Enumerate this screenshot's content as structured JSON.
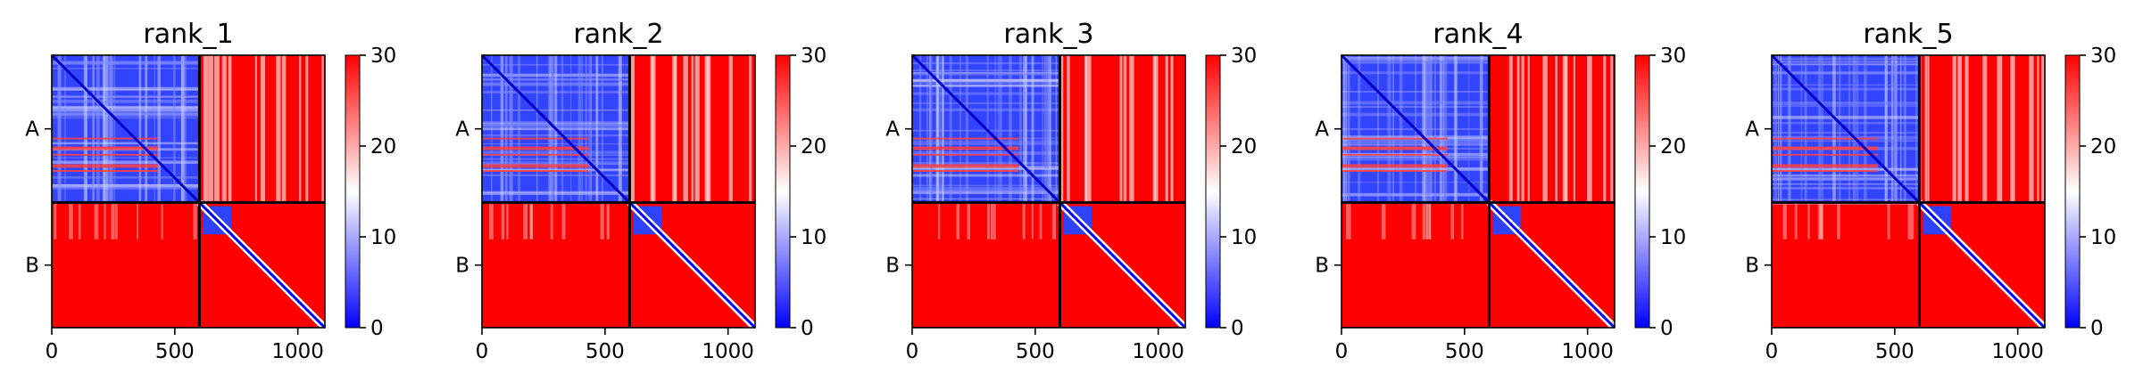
{
  "chart_data": [
    {
      "type": "heatmap",
      "title": "rank_1",
      "chains": [
        "A",
        "B"
      ],
      "chain_boundary": 600,
      "xticks": [
        "0",
        "500",
        "1000"
      ],
      "colorbar": {
        "min": 0,
        "max": 30,
        "ticks": [
          "0",
          "10",
          "20",
          "30"
        ],
        "cmap": "bwr"
      }
    },
    {
      "type": "heatmap",
      "title": "rank_2",
      "chains": [
        "A",
        "B"
      ],
      "chain_boundary": 600,
      "xticks": [
        "0",
        "500",
        "1000"
      ],
      "colorbar": {
        "min": 0,
        "max": 30,
        "ticks": [
          "0",
          "10",
          "20",
          "30"
        ],
        "cmap": "bwr"
      }
    },
    {
      "type": "heatmap",
      "title": "rank_3",
      "chains": [
        "A",
        "B"
      ],
      "chain_boundary": 600,
      "xticks": [
        "0",
        "500",
        "1000"
      ],
      "colorbar": {
        "min": 0,
        "max": 30,
        "ticks": [
          "0",
          "10",
          "20",
          "30"
        ],
        "cmap": "bwr"
      }
    },
    {
      "type": "heatmap",
      "title": "rank_4",
      "chains": [
        "A",
        "B"
      ],
      "chain_boundary": 600,
      "xticks": [
        "0",
        "500",
        "1000"
      ],
      "colorbar": {
        "min": 0,
        "max": 30,
        "ticks": [
          "0",
          "10",
          "20",
          "30"
        ],
        "cmap": "bwr"
      }
    },
    {
      "type": "heatmap",
      "title": "rank_5",
      "chains": [
        "A",
        "B"
      ],
      "chain_boundary": 600,
      "xticks": [
        "0",
        "500",
        "1000"
      ],
      "colorbar": {
        "min": 0,
        "max": 30,
        "ticks": [
          "0",
          "10",
          "20",
          "30"
        ],
        "cmap": "bwr"
      }
    }
  ],
  "colors": {
    "low": "#0000ff",
    "mid": "#ffffff",
    "high": "#ff0000"
  }
}
